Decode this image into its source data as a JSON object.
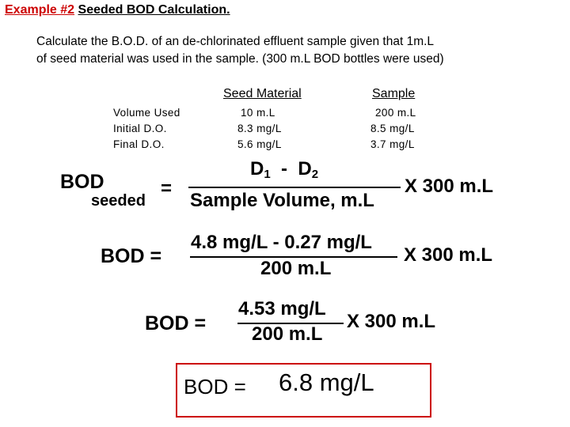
{
  "title": {
    "prefix": "Example #2",
    "text": "Seeded BOD Calculation."
  },
  "intro": {
    "line1": "Calculate the B.O.D. of an de-chlorinated effluent sample given that 1m.L",
    "line2": "of seed material was used in the sample. (300 m.L BOD bottles were used)"
  },
  "table": {
    "headers": {
      "seed": "Seed Material",
      "sample": "Sample"
    },
    "rows": [
      {
        "label": "Volume Used",
        "seed": "10 m.L",
        "sample": "200 m.L"
      },
      {
        "label": "Initial D.O.",
        "seed": "8.3 mg/L",
        "sample": "8.5 mg/L"
      },
      {
        "label": "Final D.O.",
        "seed": "5.6 mg/L",
        "sample": "3.7 mg/L"
      }
    ]
  },
  "formula": {
    "lhs_main": "BOD",
    "lhs_sub": "seeded",
    "equals": "=",
    "num_d1": "D",
    "num_d1_sub": "1",
    "num_minus": "-",
    "num_d2": "D",
    "num_d2_sub": "2",
    "denominator": "Sample Volume, m.L",
    "multiplier": "X 300 m.L"
  },
  "step1": {
    "lhs": "BOD =",
    "numerator": "4.8 mg/L - 0.27 mg/L",
    "denominator": "200 m.L",
    "multiplier": "X 300 m.L"
  },
  "step2": {
    "lhs": "BOD =",
    "numerator": "4.53 mg/L",
    "denominator": "200 m.L",
    "multiplier": "X 300 m.L"
  },
  "result": {
    "lhs": "BOD =",
    "value": "6.8 mg/L"
  },
  "colors": {
    "accent": "#cc0000",
    "text": "#000000",
    "background": "#ffffff"
  }
}
